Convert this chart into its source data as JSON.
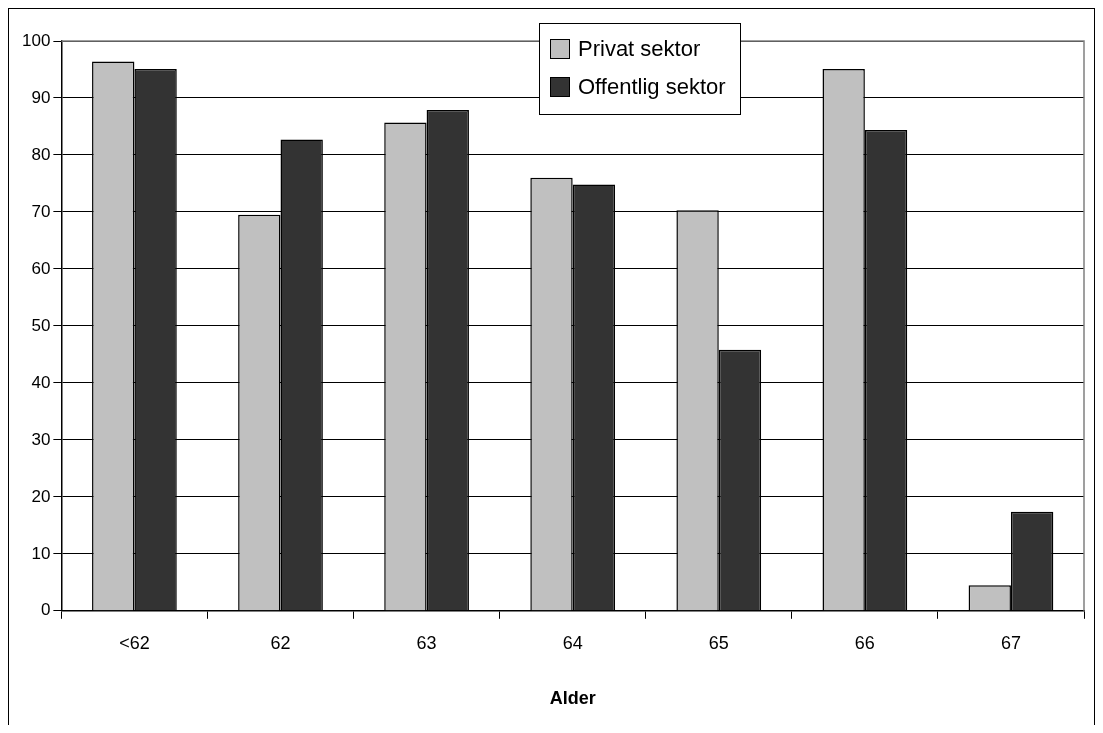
{
  "chart_data": {
    "type": "bar",
    "xlabel": "Alder",
    "categories": [
      "<62",
      "62",
      "63",
      "64",
      "65",
      "66",
      "67"
    ],
    "series": [
      {
        "name": "Privat sektor",
        "color": "#c0c0c0",
        "values": [
          96.4,
          69.5,
          85.7,
          76.0,
          70.3,
          95.1,
          4.5
        ]
      },
      {
        "name": "Offentlig sektor",
        "color": "#333333",
        "values": [
          95.1,
          82.7,
          87.9,
          74.8,
          45.8,
          84.4,
          17.4
        ]
      }
    ],
    "ylim": [
      0,
      100
    ],
    "yticks": [
      0,
      10,
      20,
      30,
      40,
      50,
      60,
      70,
      80,
      90,
      100
    ],
    "grid": "y",
    "legend": "top"
  }
}
